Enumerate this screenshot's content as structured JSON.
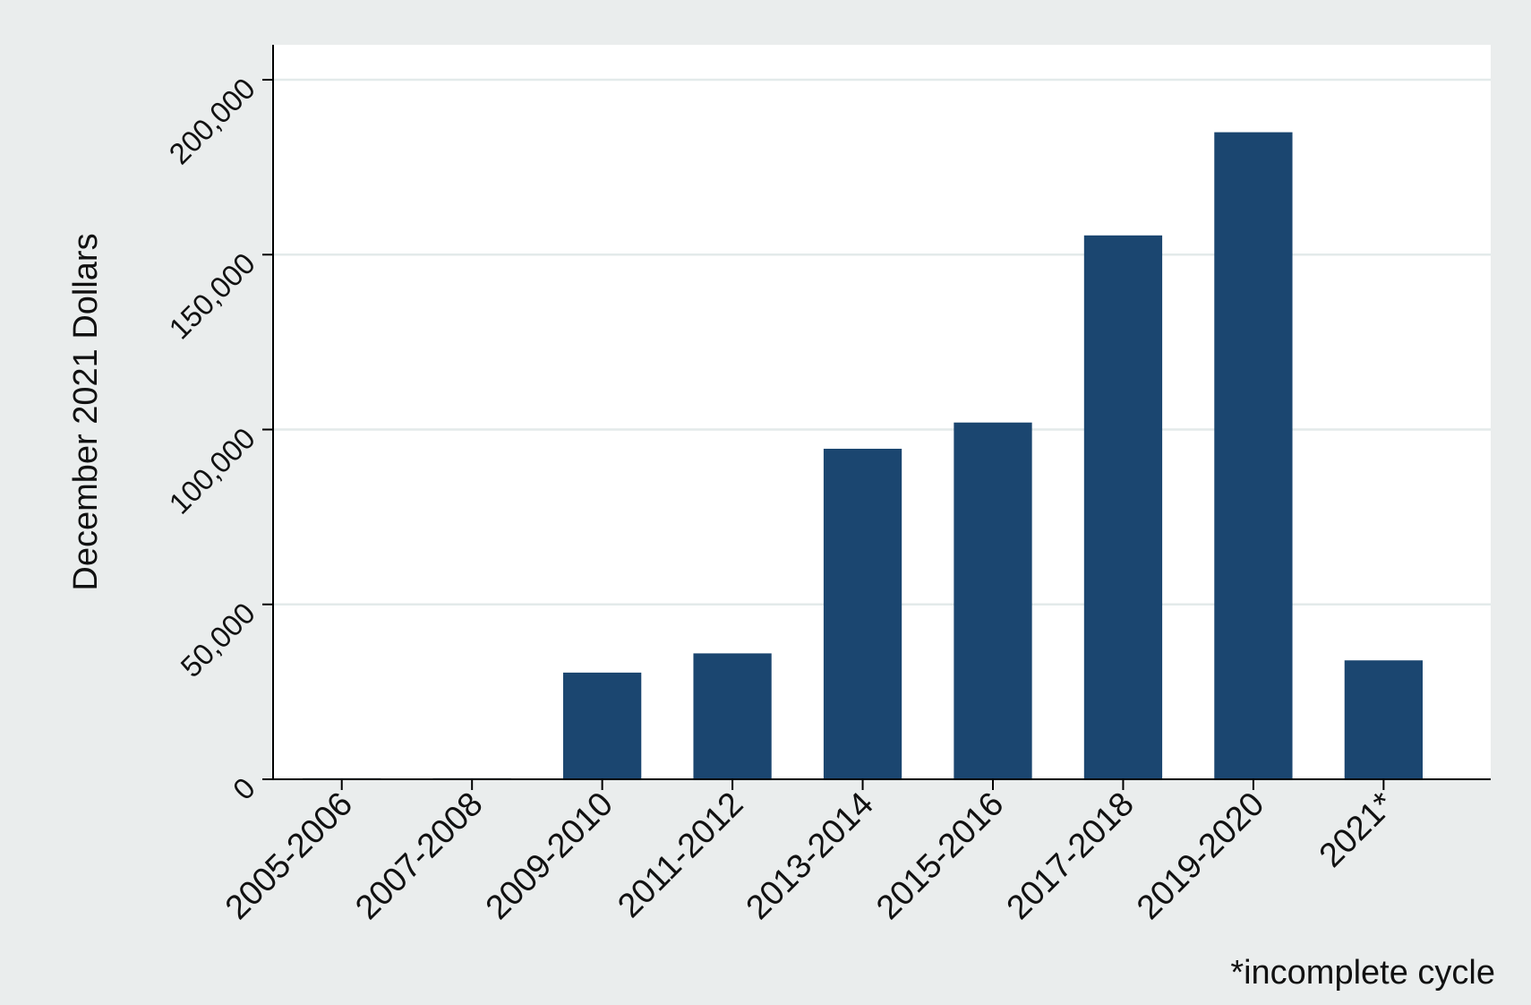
{
  "chart_data": {
    "type": "bar",
    "title": "",
    "xlabel": "",
    "ylabel": "December 2021 Dollars",
    "categories": [
      "2005-2006",
      "2007-2008",
      "2009-2010",
      "2011-2012",
      "2013-2014",
      "2015-2016",
      "2017-2018",
      "2019-2020",
      "2021*"
    ],
    "values": [
      300,
      300,
      30500,
      36000,
      94500,
      102000,
      155500,
      185000,
      34000
    ],
    "ylim": [
      0,
      210000
    ],
    "yticks": [
      0,
      50000,
      100000,
      150000,
      200000
    ],
    "ytick_labels": [
      "0",
      "50,000",
      "100,000",
      "150,000",
      "200,000"
    ],
    "grid": true,
    "legend": "none",
    "note": "*incomplete cycle",
    "colors": {
      "bar": "#1b4670",
      "plot_background": "#ffffff",
      "outer_background": "#eaeded",
      "gridline": "#e3eaea"
    }
  }
}
